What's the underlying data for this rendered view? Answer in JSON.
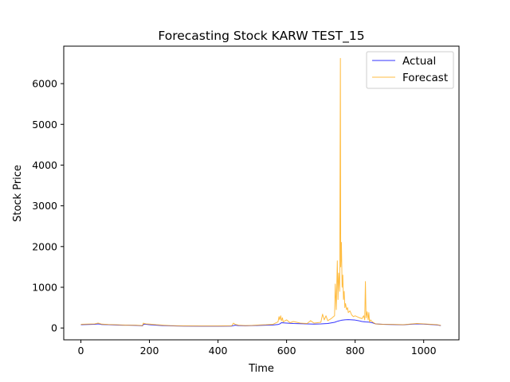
{
  "chart_data": {
    "type": "line",
    "title": "Forecasting Stock KARW TEST_15",
    "xlabel": "Time",
    "ylabel": "Stock Price",
    "xlim": [
      -50,
      1103
    ],
    "ylim": [
      -290,
      6920
    ],
    "xticks": [
      0,
      200,
      400,
      600,
      800,
      1000
    ],
    "yticks": [
      0,
      1000,
      2000,
      3000,
      4000,
      5000,
      6000
    ],
    "grid": false,
    "legend_position": "top-right",
    "series": [
      {
        "name": "Actual",
        "color": "#0000ff",
        "x": [
          0,
          20,
          40,
          50,
          55,
          60,
          80,
          100,
          120,
          140,
          160,
          180,
          182,
          185,
          190,
          200,
          220,
          240,
          260,
          280,
          300,
          350,
          400,
          440,
          450,
          460,
          480,
          500,
          520,
          540,
          560,
          575,
          580,
          585,
          600,
          620,
          640,
          660,
          680,
          700,
          720,
          740,
          750,
          760,
          770,
          780,
          790,
          800,
          810,
          820,
          830,
          840,
          850,
          860,
          880,
          900,
          920,
          940,
          960,
          980,
          1000,
          1020,
          1040,
          1050
        ],
        "y": [
          80,
          85,
          90,
          100,
          95,
          85,
          80,
          75,
          70,
          68,
          65,
          55,
          85,
          95,
          90,
          80,
          70,
          60,
          55,
          50,
          48,
          45,
          45,
          48,
          70,
          60,
          55,
          60,
          65,
          70,
          75,
          85,
          100,
          130,
          120,
          110,
          105,
          100,
          95,
          100,
          110,
          140,
          170,
          190,
          200,
          205,
          200,
          195,
          180,
          160,
          150,
          145,
          130,
          100,
          90,
          85,
          80,
          78,
          90,
          100,
          95,
          85,
          75,
          60
        ]
      },
      {
        "name": "Forecast",
        "color": "#ffa500",
        "x": [
          0,
          20,
          40,
          50,
          55,
          60,
          80,
          100,
          120,
          140,
          160,
          180,
          182,
          185,
          190,
          200,
          220,
          240,
          260,
          280,
          300,
          350,
          400,
          440,
          445,
          450,
          460,
          480,
          500,
          520,
          540,
          560,
          575,
          578,
          580,
          583,
          585,
          588,
          590,
          600,
          610,
          620,
          640,
          660,
          670,
          680,
          700,
          705,
          710,
          715,
          720,
          730,
          740,
          742,
          745,
          748,
          750,
          752,
          755,
          757,
          758,
          760,
          762,
          764,
          766,
          768,
          770,
          772,
          775,
          778,
          780,
          785,
          790,
          795,
          800,
          810,
          820,
          825,
          828,
          830,
          832,
          835,
          838,
          840,
          842,
          845,
          850,
          860,
          880,
          900,
          920,
          940,
          960,
          980,
          1000,
          1020,
          1040,
          1050
        ],
        "y": [
          90,
          95,
          100,
          120,
          110,
          95,
          85,
          80,
          75,
          70,
          68,
          60,
          120,
          110,
          100,
          95,
          80,
          70,
          60,
          55,
          52,
          50,
          50,
          55,
          120,
          90,
          70,
          60,
          65,
          75,
          80,
          90,
          150,
          280,
          200,
          300,
          180,
          250,
          150,
          200,
          130,
          160,
          120,
          110,
          180,
          120,
          140,
          340,
          200,
          300,
          180,
          230,
          300,
          1080,
          450,
          1650,
          700,
          1350,
          900,
          6620,
          1500,
          2100,
          1000,
          1300,
          700,
          900,
          500,
          600,
          450,
          500,
          380,
          420,
          320,
          280,
          300,
          260,
          230,
          300,
          200,
          1140,
          250,
          400,
          200,
          380,
          150,
          200,
          150,
          100,
          90,
          88,
          85,
          80,
          95,
          110,
          100,
          90,
          80,
          65
        ]
      }
    ]
  }
}
